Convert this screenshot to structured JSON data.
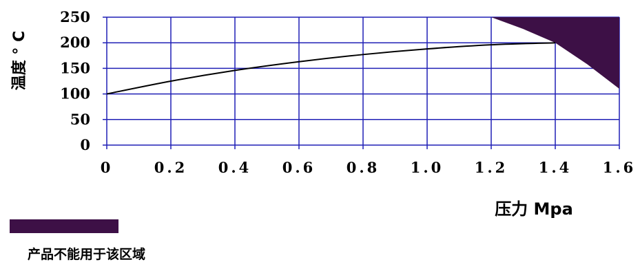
{
  "chart_data": {
    "type": "line",
    "xlabel": "压力 Mpa",
    "ylabel": "温度 ° C",
    "xlim": [
      0,
      1.6
    ],
    "ylim": [
      0,
      250
    ],
    "x_ticks": [
      "0",
      "0.2",
      "0.4",
      "0.6",
      "0.8",
      "1.0",
      "1.2",
      "1.4",
      "1.6"
    ],
    "y_ticks": [
      "0",
      "50",
      "100",
      "150",
      "200",
      "250"
    ],
    "grid": true,
    "series": [
      {
        "x": [
          0,
          0.2,
          0.4,
          0.6,
          0.8,
          1.0,
          1.2,
          1.4
        ],
        "y": [
          100,
          125,
          146,
          163,
          177,
          188,
          196,
          200
        ],
        "color": "#000000"
      }
    ],
    "forbidden_region": {
      "boundary_x": [
        1.2,
        1.3,
        1.4,
        1.5,
        1.6
      ],
      "boundary_y": [
        250,
        227,
        200,
        158,
        110
      ],
      "color": "#3d1046"
    },
    "legend": {
      "label": "产品不能用于该区域",
      "color": "#3d1046",
      "position": "bottom-left"
    },
    "colors": {
      "grid": "#1f1fb5",
      "axis": "#1f1fb5",
      "line": "#000000"
    }
  }
}
